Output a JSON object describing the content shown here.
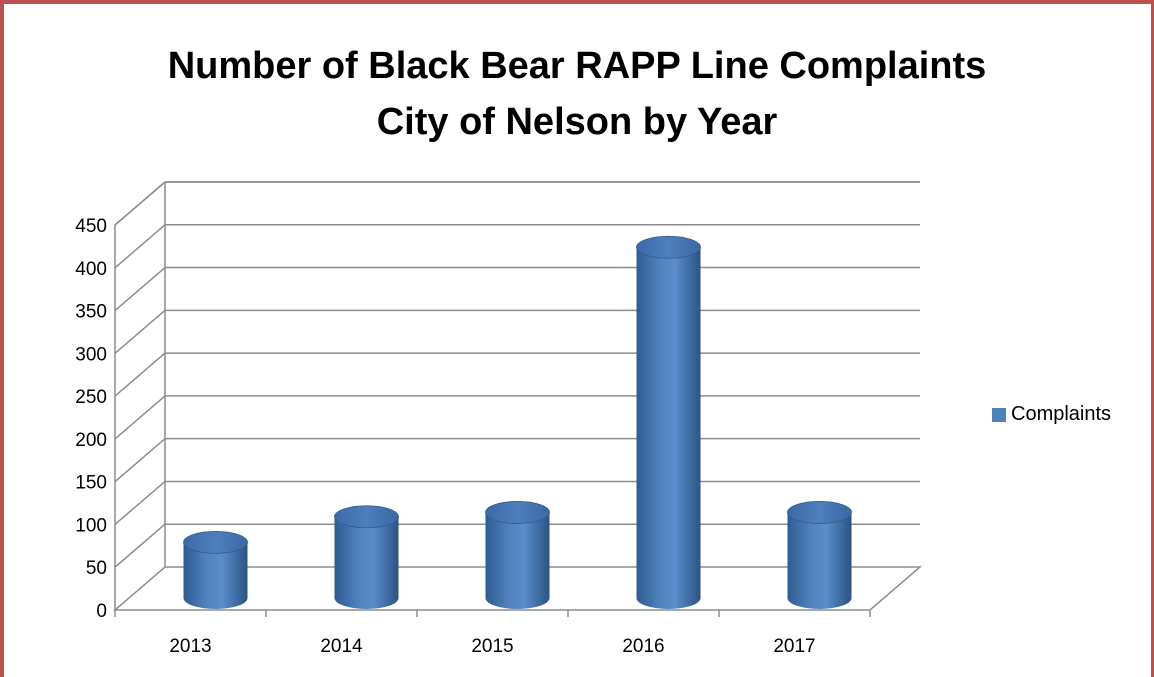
{
  "chart_data": {
    "type": "bar",
    "style": "3d-cylinder",
    "title": [
      "Number of Black Bear RAPP Line Complaints",
      "City of Nelson by Year"
    ],
    "xlabel": "",
    "ylabel": "",
    "categories": [
      "2013",
      "2014",
      "2015",
      "2016",
      "2017"
    ],
    "series": [
      {
        "name": "Complaints",
        "values": [
          65,
          95,
          100,
          410,
          100
        ],
        "color": "#4f81bd"
      }
    ],
    "ylim": [
      0,
      450
    ],
    "yticks": [
      0,
      50,
      100,
      150,
      200,
      250,
      300,
      350,
      400,
      450
    ],
    "grid": true,
    "legend_position": "right"
  }
}
